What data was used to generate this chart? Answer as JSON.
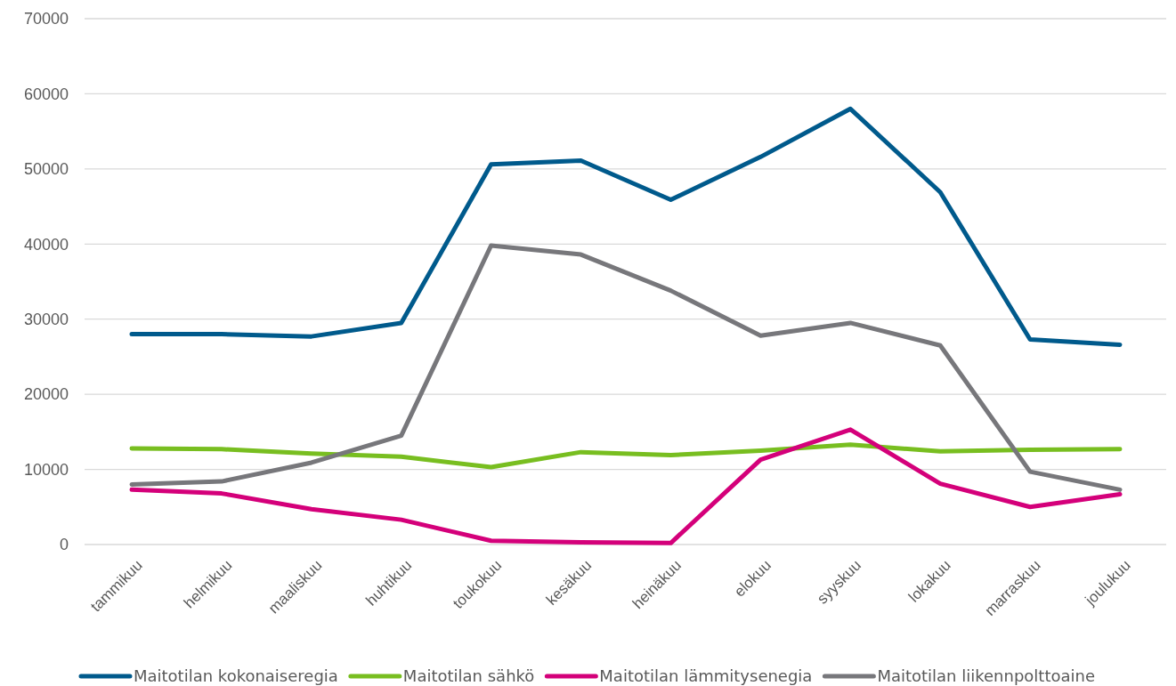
{
  "chart_data": {
    "type": "line",
    "categories": [
      "tammikuu",
      "helmikuu",
      "maaliskuu",
      "huhtikuu",
      "toukokuu",
      "kesäkuu",
      "heinäkuu",
      "elokuu",
      "syyskuu",
      "lokakuu",
      "marraskuu",
      "joulukuu"
    ],
    "series": [
      {
        "name": "Maitotilan kokonaiseregia",
        "color": "#005a8c",
        "values": [
          28000,
          28000,
          27700,
          29500,
          50600,
          51100,
          45900,
          51600,
          58000,
          46900,
          27300,
          26600
        ]
      },
      {
        "name": "Maitotilan sähkö",
        "color": "#78be20",
        "values": [
          12800,
          12700,
          12100,
          11700,
          10300,
          12300,
          11900,
          12500,
          13300,
          12400,
          12600,
          12700
        ]
      },
      {
        "name": "Maitotilan lämmitysenegia",
        "color": "#d4007a",
        "values": [
          7300,
          6800,
          4700,
          3300,
          500,
          300,
          200,
          11300,
          15300,
          8100,
          5000,
          6700
        ]
      },
      {
        "name": "Maitotilan liikennpolttoaine",
        "color": "#77777b",
        "values": [
          8000,
          8400,
          10900,
          14500,
          39800,
          38600,
          33800,
          27800,
          29500,
          26500,
          9700,
          7300
        ]
      }
    ],
    "ylim": [
      0,
      70000
    ],
    "yticks": [
      0,
      10000,
      20000,
      30000,
      40000,
      50000,
      60000,
      70000
    ],
    "grid": "y",
    "legend": "bottom",
    "marker": "none",
    "line_style": "solid"
  }
}
